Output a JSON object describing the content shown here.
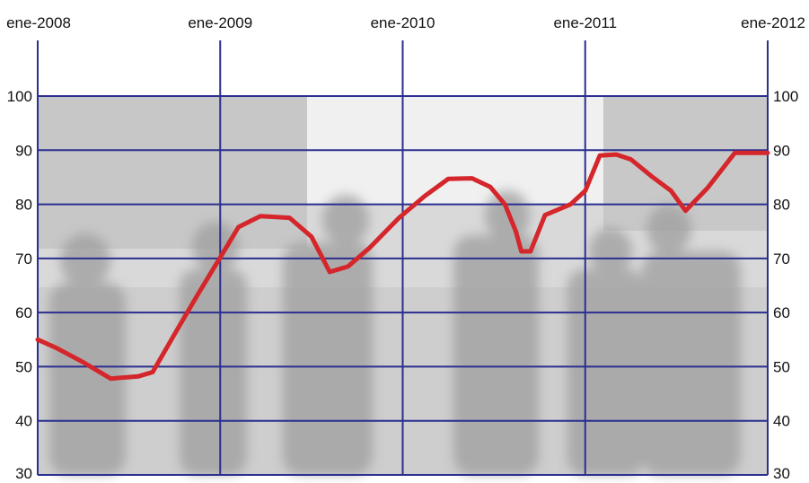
{
  "chart_data": {
    "type": "line",
    "title": "",
    "xlabel": "",
    "ylabel": "",
    "x_ticks": [
      {
        "label": "ene-2008",
        "value": 2008.0
      },
      {
        "label": "ene-2009",
        "value": 2009.0
      },
      {
        "label": "ene-2010",
        "value": 2010.0
      },
      {
        "label": "ene-2011",
        "value": 2011.0
      },
      {
        "label": "ene-2012",
        "value": 2012.0
      }
    ],
    "y_ticks": [
      30,
      40,
      50,
      60,
      70,
      80,
      90,
      100
    ],
    "xlim": [
      2008.0,
      2012.0
    ],
    "ylim": [
      30,
      100
    ],
    "grid": true,
    "legend": "none",
    "colors": {
      "line": "#d4262b",
      "grid": "#2b2f8f",
      "background_photo_tint": "#cfcfcf"
    },
    "series": [
      {
        "x": [
          2008.0,
          2008.1,
          2008.25,
          2008.4,
          2008.55,
          2008.63,
          2008.75,
          2008.88,
          2009.0,
          2009.1,
          2009.22,
          2009.38,
          2009.5,
          2009.6,
          2009.7,
          2009.82,
          2009.98,
          2010.12,
          2010.25,
          2010.38,
          2010.48,
          2010.56,
          2010.62,
          2010.65,
          2010.7,
          2010.78,
          2010.92,
          2011.0,
          2011.08,
          2011.17,
          2011.25,
          2011.37,
          2011.47,
          2011.55,
          2011.67,
          2011.82,
          2012.0
        ],
        "y": [
          55,
          53.5,
          50.8,
          47.8,
          48.2,
          49,
          56,
          63.5,
          70.2,
          75.8,
          77.8,
          77.5,
          74,
          67.5,
          68.5,
          72,
          77.5,
          81.5,
          84.7,
          84.8,
          83.2,
          80,
          75,
          71.3,
          71.3,
          78,
          80,
          82.5,
          89,
          89.2,
          88.3,
          85,
          82.5,
          78.8,
          83,
          89.5,
          89.5
        ]
      }
    ]
  }
}
